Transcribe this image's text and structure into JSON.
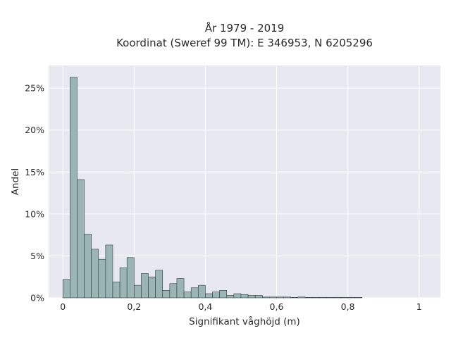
{
  "chart_data": {
    "type": "bar",
    "title": [
      "År 1979 - 2019",
      "Koordinat (Sweref 99 TM): E 346953, N 6205296"
    ],
    "xlabel": "Signifikant våghöjd (m)",
    "ylabel": "Andel",
    "xlim": [
      -0.04,
      1.06
    ],
    "ylim": [
      0,
      0.277
    ],
    "x_ticks": [
      {
        "value": 0,
        "label": "0"
      },
      {
        "value": 0.2,
        "label": "0,2"
      },
      {
        "value": 0.4,
        "label": "0,4"
      },
      {
        "value": 0.6,
        "label": "0,6"
      },
      {
        "value": 0.8,
        "label": "0,8"
      },
      {
        "value": 1.0,
        "label": "1"
      }
    ],
    "y_ticks": [
      {
        "value": 0,
        "label": "0%"
      },
      {
        "value": 0.05,
        "label": "5%"
      },
      {
        "value": 0.1,
        "label": "10%"
      },
      {
        "value": 0.15,
        "label": "15%"
      },
      {
        "value": 0.2,
        "label": "20%"
      },
      {
        "value": 0.25,
        "label": "25%"
      }
    ],
    "grid": true,
    "bins": [
      [
        0.0,
        0.02,
        0.022
      ],
      [
        0.02,
        0.04,
        0.263
      ],
      [
        0.04,
        0.06,
        0.141
      ],
      [
        0.06,
        0.08,
        0.076
      ],
      [
        0.08,
        0.1,
        0.058
      ],
      [
        0.1,
        0.12,
        0.046
      ],
      [
        0.12,
        0.14,
        0.063
      ],
      [
        0.14,
        0.16,
        0.019
      ],
      [
        0.16,
        0.18,
        0.036
      ],
      [
        0.18,
        0.2,
        0.048
      ],
      [
        0.2,
        0.22,
        0.015
      ],
      [
        0.22,
        0.24,
        0.029
      ],
      [
        0.24,
        0.26,
        0.025
      ],
      [
        0.26,
        0.28,
        0.033
      ],
      [
        0.28,
        0.3,
        0.009
      ],
      [
        0.3,
        0.32,
        0.017
      ],
      [
        0.32,
        0.34,
        0.023
      ],
      [
        0.34,
        0.36,
        0.007
      ],
      [
        0.36,
        0.38,
        0.012
      ],
      [
        0.38,
        0.4,
        0.015
      ],
      [
        0.4,
        0.42,
        0.005
      ],
      [
        0.42,
        0.44,
        0.007
      ],
      [
        0.44,
        0.46,
        0.009
      ],
      [
        0.46,
        0.48,
        0.003
      ],
      [
        0.48,
        0.5,
        0.005
      ],
      [
        0.5,
        0.52,
        0.004
      ],
      [
        0.52,
        0.54,
        0.003
      ],
      [
        0.54,
        0.56,
        0.003
      ],
      [
        0.56,
        0.58,
        0.001
      ],
      [
        0.58,
        0.6,
        0.001
      ],
      [
        0.6,
        0.62,
        0.001
      ],
      [
        0.62,
        0.64,
        0.001
      ],
      [
        0.64,
        0.66,
        0.0005
      ],
      [
        0.66,
        0.68,
        0.001
      ],
      [
        0.68,
        0.7,
        0.0005
      ],
      [
        0.7,
        0.72,
        0.0005
      ],
      [
        0.72,
        0.74,
        0.0005
      ],
      [
        0.74,
        0.76,
        0.0005
      ],
      [
        0.76,
        0.78,
        0.0005
      ],
      [
        0.78,
        0.8,
        0.0005
      ],
      [
        0.8,
        0.82,
        0.0005
      ],
      [
        0.82,
        0.84,
        0.0005
      ]
    ],
    "colors": {
      "bar_fill": "#9bb5b4",
      "bar_stroke": "#2f3f3f",
      "plot_bg": "#e8e8f0",
      "grid": "#ffffff"
    }
  }
}
